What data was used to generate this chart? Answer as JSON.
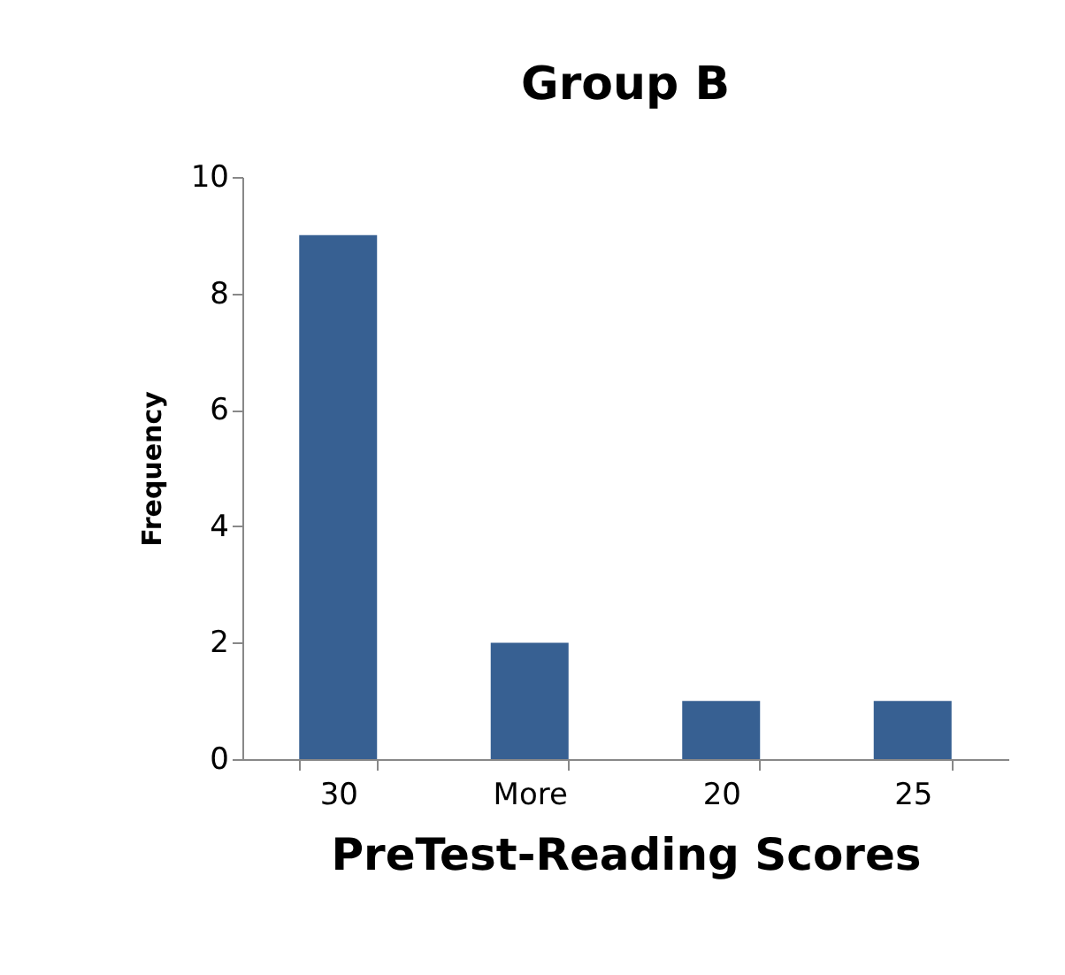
{
  "chart_data": {
    "type": "bar",
    "title": "Group B",
    "xlabel": "PreTest-Reading Scores",
    "ylabel": "Frequency",
    "categories": [
      "30",
      "More",
      "20",
      "25"
    ],
    "values": [
      9,
      2,
      1,
      1
    ],
    "color": "#376092",
    "ylim": [
      0,
      10
    ],
    "yticks": [
      0,
      2,
      4,
      6,
      8,
      10
    ],
    "grid": false
  }
}
